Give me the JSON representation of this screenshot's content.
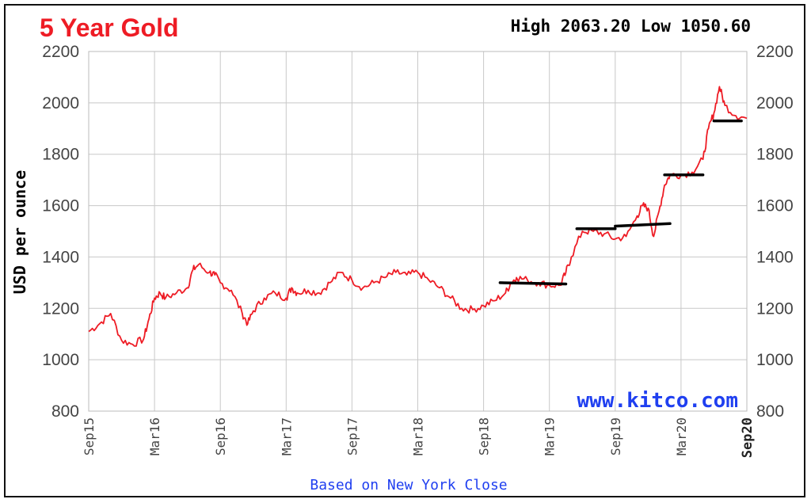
{
  "chart_data": {
    "type": "line",
    "title": "5 Year Gold",
    "high_low": "High 2063.20 Low 1050.60",
    "ylabel": "USD per ounce",
    "footer": "Based on New York Close",
    "watermark": "www.kitco.com",
    "ylim": [
      800,
      2200
    ],
    "yticks": [
      "2200",
      "2000",
      "1800",
      "1600",
      "1400",
      "1200",
      "1000",
      "800"
    ],
    "xticks": [
      "Sep15",
      "Mar16",
      "Sep16",
      "Mar17",
      "Sep17",
      "Mar18",
      "Sep18",
      "Mar19",
      "Sep19",
      "Mar20",
      "Sep20"
    ],
    "grid": true,
    "line_color": "#ee1c25",
    "series": [
      {
        "values": [
          [
            0.0,
            1110
          ],
          [
            1.0,
            1140
          ],
          [
            2.0,
            1180
          ],
          [
            3.0,
            1075
          ],
          [
            4.0,
            1060
          ],
          [
            5.0,
            1080
          ],
          [
            5.5,
            1160
          ],
          [
            6.0,
            1240
          ],
          [
            6.5,
            1260
          ],
          [
            7.0,
            1240
          ],
          [
            8.0,
            1260
          ],
          [
            9.0,
            1280
          ],
          [
            9.5,
            1350
          ],
          [
            10.0,
            1370
          ],
          [
            11.0,
            1340
          ],
          [
            11.5,
            1330
          ],
          [
            12.0,
            1300
          ],
          [
            13.0,
            1270
          ],
          [
            14.0,
            1180
          ],
          [
            14.5,
            1140
          ],
          [
            15.0,
            1190
          ],
          [
            16.0,
            1240
          ],
          [
            17.0,
            1260
          ],
          [
            18.0,
            1240
          ],
          [
            18.5,
            1280
          ],
          [
            19.0,
            1260
          ],
          [
            20.0,
            1270
          ],
          [
            21.0,
            1260
          ],
          [
            22.0,
            1300
          ],
          [
            23.0,
            1340
          ],
          [
            24.0,
            1310
          ],
          [
            25.0,
            1280
          ],
          [
            26.0,
            1300
          ],
          [
            27.0,
            1320
          ],
          [
            28.0,
            1340
          ],
          [
            29.0,
            1330
          ],
          [
            30.0,
            1340
          ],
          [
            31.0,
            1310
          ],
          [
            32.0,
            1280
          ],
          [
            33.0,
            1240
          ],
          [
            34.0,
            1200
          ],
          [
            35.0,
            1195
          ],
          [
            36.0,
            1210
          ],
          [
            37.0,
            1230
          ],
          [
            38.0,
            1260
          ],
          [
            38.5,
            1300
          ],
          [
            39.0,
            1320
          ],
          [
            40.0,
            1310
          ],
          [
            41.0,
            1300
          ],
          [
            42.0,
            1290
          ],
          [
            43.0,
            1290
          ],
          [
            43.5,
            1340
          ],
          [
            44.0,
            1400
          ],
          [
            45.0,
            1500
          ],
          [
            46.0,
            1500
          ],
          [
            47.0,
            1490
          ],
          [
            48.0,
            1470
          ],
          [
            49.0,
            1480
          ],
          [
            50.0,
            1560
          ],
          [
            50.5,
            1600
          ],
          [
            51.0,
            1590
          ],
          [
            51.5,
            1480
          ],
          [
            52.0,
            1580
          ],
          [
            52.5,
            1680
          ],
          [
            53.0,
            1720
          ],
          [
            54.0,
            1720
          ],
          [
            55.0,
            1730
          ],
          [
            56.0,
            1780
          ],
          [
            56.5,
            1900
          ],
          [
            57.0,
            1960
          ],
          [
            57.5,
            2063.2
          ],
          [
            58.0,
            1990
          ],
          [
            59.0,
            1950
          ],
          [
            60.0,
            1940
          ]
        ]
      }
    ],
    "overlay_lines": [
      {
        "x": [
          37.5,
          43.5
        ],
        "y": [
          1300,
          1295
        ]
      },
      {
        "x": [
          44.5,
          48.0
        ],
        "y": [
          1510,
          1510
        ]
      },
      {
        "x": [
          48.0,
          53.0
        ],
        "y": [
          1520,
          1530
        ]
      },
      {
        "x": [
          52.5,
          56.0
        ],
        "y": [
          1720,
          1720
        ]
      },
      {
        "x": [
          57.0,
          59.5
        ],
        "y": [
          1930,
          1930
        ]
      }
    ]
  }
}
